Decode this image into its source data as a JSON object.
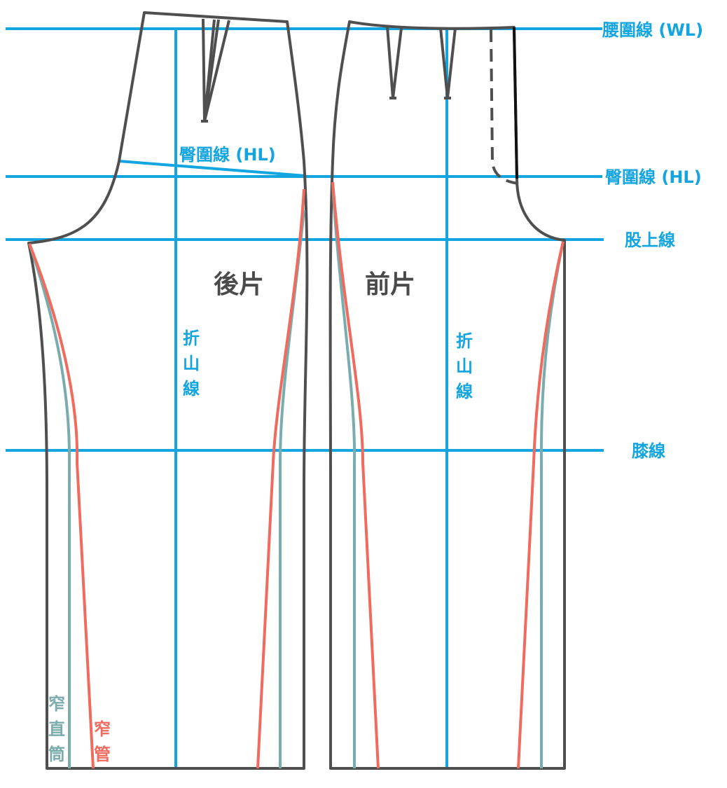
{
  "lines": {
    "waist": "腰圍線 (WL)",
    "hip_right": "臀圍線 (HL)",
    "hip_back": "臀圍線 (HL)",
    "crotch": "股上線",
    "knee": "膝線"
  },
  "pieces": {
    "back": "後片",
    "front": "前片"
  },
  "crease": {
    "back": [
      "折",
      "山",
      "線"
    ],
    "front": [
      "折",
      "山",
      "線"
    ]
  },
  "variants": {
    "slim_straight": [
      "窄",
      "直",
      "筒"
    ],
    "skinny": [
      "窄",
      "管"
    ]
  },
  "colors": {
    "guide": "#12a5e0",
    "outline": "#4f4f4f",
    "slim_straight": "#7aacad",
    "skinny": "#f06a5d"
  }
}
